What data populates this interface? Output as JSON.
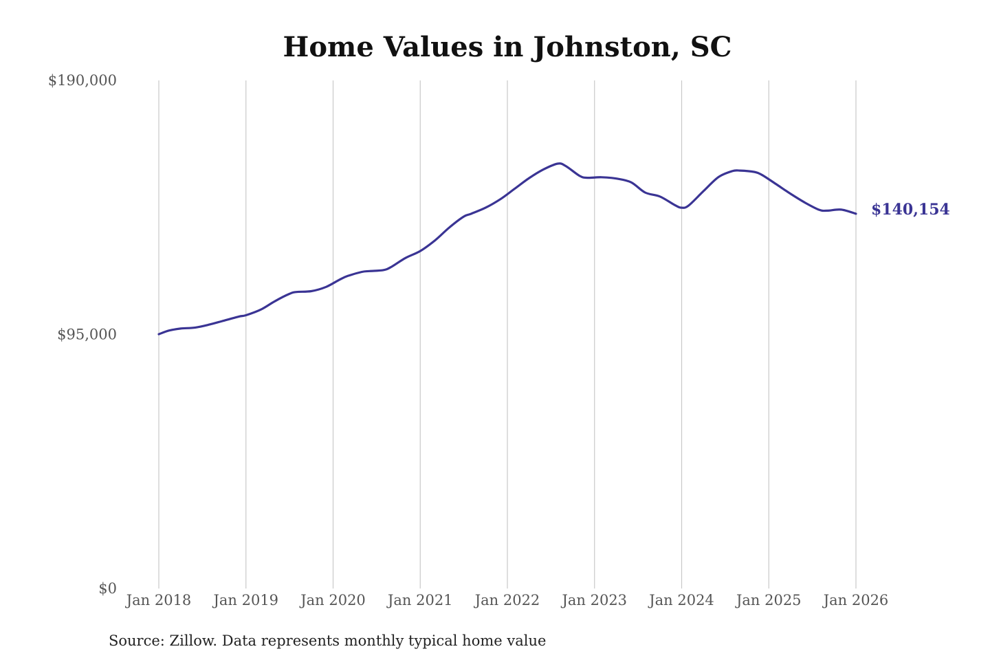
{
  "chart_data": {
    "type": "line",
    "title": "Home Values in Johnston, SC",
    "source": "Source: Zillow. Data represents monthly typical home value",
    "ylim": [
      0,
      190000
    ],
    "yticks": [
      {
        "value": 0,
        "label": "$0"
      },
      {
        "value": 95000,
        "label": "$95,000"
      },
      {
        "value": 190000,
        "label": "$190,000"
      }
    ],
    "xlim": [
      2018.0,
      2026.0
    ],
    "xticks": [
      {
        "value": 2018,
        "label": "Jan 2018"
      },
      {
        "value": 2019,
        "label": "Jan 2019"
      },
      {
        "value": 2020,
        "label": "Jan 2020"
      },
      {
        "value": 2021,
        "label": "Jan 2021"
      },
      {
        "value": 2022,
        "label": "Jan 2022"
      },
      {
        "value": 2023,
        "label": "Jan 2023"
      },
      {
        "value": 2024,
        "label": "Jan 2024"
      },
      {
        "value": 2025,
        "label": "Jan 2025"
      },
      {
        "value": 2026,
        "label": "Jan 2026"
      }
    ],
    "grid": {
      "vertical": true,
      "horizontal": false
    },
    "series": [
      {
        "name": "Typical home value",
        "color": "#3a3494",
        "end_label": "$140,154",
        "x": [
          2018.0,
          2018.12,
          2018.25,
          2018.42,
          2018.58,
          2018.75,
          2018.92,
          2019.0,
          2019.17,
          2019.33,
          2019.5,
          2019.58,
          2019.75,
          2019.92,
          2020.08,
          2020.17,
          2020.33,
          2020.42,
          2020.58,
          2020.67,
          2020.83,
          2021.0,
          2021.17,
          2021.33,
          2021.5,
          2021.58,
          2021.75,
          2021.92,
          2022.08,
          2022.25,
          2022.42,
          2022.58,
          2022.67,
          2022.83,
          2022.92,
          2023.08,
          2023.25,
          2023.42,
          2023.58,
          2023.75,
          2023.92,
          2024.0,
          2024.08,
          2024.25,
          2024.42,
          2024.58,
          2024.67,
          2024.83,
          2024.92,
          2025.08,
          2025.25,
          2025.42,
          2025.58,
          2025.67,
          2025.83,
          2026.0
        ],
        "values": [
          95100,
          96500,
          97200,
          97600,
          98700,
          100200,
          101700,
          102200,
          104300,
          107400,
          110200,
          110900,
          111200,
          112800,
          115600,
          116900,
          118400,
          118700,
          119100,
          120300,
          123600,
          126200,
          130200,
          134900,
          139100,
          140100,
          142400,
          145600,
          149400,
          153500,
          156800,
          158900,
          158000,
          154300,
          153600,
          153800,
          153300,
          151900,
          148100,
          146600,
          143400,
          142400,
          143200,
          148600,
          153800,
          156100,
          156300,
          155800,
          154700,
          151300,
          147600,
          144200,
          141600,
          141300,
          141700,
          140154
        ]
      }
    ]
  }
}
